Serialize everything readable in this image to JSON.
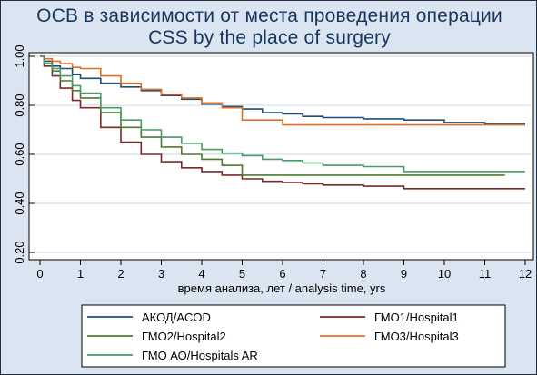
{
  "chart_data": {
    "type": "line",
    "title": "ОСВ в зависимости от места проведения операции",
    "subtitle": "CSS by the place of surgery",
    "xlabel": "время анализа, лет / analysis time, yrs",
    "ylabel": "",
    "xlim": [
      0,
      12
    ],
    "ylim": [
      0.2,
      1.0
    ],
    "x_ticks": [
      "0",
      "1",
      "2",
      "3",
      "4",
      "5",
      "6",
      "7",
      "8",
      "9",
      "10",
      "11",
      "12"
    ],
    "y_ticks": [
      "0.20",
      "0.40",
      "0.60",
      "0.80",
      "1.00"
    ],
    "grid": true,
    "legend_position": "bottom",
    "series": [
      {
        "name": "АКОД/ACOD",
        "color": "#1f4e79",
        "points": [
          [
            0,
            1.0
          ],
          [
            0.1,
            0.98
          ],
          [
            0.3,
            0.96
          ],
          [
            0.5,
            0.95
          ],
          [
            0.8,
            0.925
          ],
          [
            1.0,
            0.91
          ],
          [
            1.5,
            0.89
          ],
          [
            2.0,
            0.875
          ],
          [
            2.5,
            0.86
          ],
          [
            3.0,
            0.84
          ],
          [
            3.5,
            0.825
          ],
          [
            4.0,
            0.805
          ],
          [
            4.5,
            0.795
          ],
          [
            5.0,
            0.785
          ],
          [
            5.5,
            0.77
          ],
          [
            6.0,
            0.765
          ],
          [
            6.5,
            0.755
          ],
          [
            7.0,
            0.75
          ],
          [
            8.0,
            0.745
          ],
          [
            9.0,
            0.74
          ],
          [
            10.0,
            0.73
          ],
          [
            11.0,
            0.725
          ],
          [
            12.0,
            0.725
          ]
        ]
      },
      {
        "name": "ГМО1/Hospital1",
        "color": "#7b2929",
        "points": [
          [
            0,
            1.0
          ],
          [
            0.1,
            0.96
          ],
          [
            0.3,
            0.92
          ],
          [
            0.5,
            0.87
          ],
          [
            0.8,
            0.82
          ],
          [
            1.0,
            0.79
          ],
          [
            1.5,
            0.71
          ],
          [
            2.0,
            0.65
          ],
          [
            2.5,
            0.6
          ],
          [
            3.0,
            0.57
          ],
          [
            3.5,
            0.545
          ],
          [
            4.0,
            0.53
          ],
          [
            4.5,
            0.515
          ],
          [
            5.0,
            0.5
          ],
          [
            5.5,
            0.49
          ],
          [
            6.0,
            0.485
          ],
          [
            6.5,
            0.48
          ],
          [
            7.0,
            0.475
          ],
          [
            8.0,
            0.47
          ],
          [
            9.0,
            0.46
          ],
          [
            10.0,
            0.46
          ],
          [
            11.0,
            0.46
          ],
          [
            12.0,
            0.46
          ]
        ]
      },
      {
        "name": "ГМО2/Hospital2",
        "color": "#4f7a2e",
        "points": [
          [
            0,
            1.0
          ],
          [
            0.1,
            0.97
          ],
          [
            0.3,
            0.94
          ],
          [
            0.5,
            0.9
          ],
          [
            0.8,
            0.86
          ],
          [
            1.0,
            0.83
          ],
          [
            1.5,
            0.77
          ],
          [
            2.0,
            0.71
          ],
          [
            2.5,
            0.67
          ],
          [
            3.0,
            0.63
          ],
          [
            3.5,
            0.6
          ],
          [
            4.0,
            0.58
          ],
          [
            4.5,
            0.555
          ],
          [
            5.0,
            0.515
          ],
          [
            6.0,
            0.515
          ],
          [
            7.0,
            0.515
          ],
          [
            8.0,
            0.515
          ],
          [
            9.0,
            0.515
          ],
          [
            10.0,
            0.515
          ],
          [
            11.0,
            0.515
          ],
          [
            11.5,
            0.515
          ]
        ]
      },
      {
        "name": "ГМО3/Hospital3",
        "color": "#e07028",
        "points": [
          [
            0,
            1.0
          ],
          [
            0.1,
            0.99
          ],
          [
            0.3,
            0.98
          ],
          [
            0.5,
            0.97
          ],
          [
            0.8,
            0.955
          ],
          [
            1.0,
            0.95
          ],
          [
            1.5,
            0.92
          ],
          [
            2.0,
            0.89
          ],
          [
            2.5,
            0.865
          ],
          [
            3.0,
            0.845
          ],
          [
            3.5,
            0.83
          ],
          [
            4.0,
            0.81
          ],
          [
            4.5,
            0.79
          ],
          [
            5.0,
            0.74
          ],
          [
            5.5,
            0.74
          ],
          [
            6.0,
            0.72
          ],
          [
            7.0,
            0.72
          ],
          [
            8.0,
            0.72
          ],
          [
            9.0,
            0.72
          ],
          [
            10.0,
            0.72
          ],
          [
            11.0,
            0.72
          ],
          [
            12.0,
            0.72
          ]
        ]
      },
      {
        "name": "ГМО АО/Hospitals AR",
        "color": "#4a9a6a",
        "points": [
          [
            0,
            1.0
          ],
          [
            0.1,
            0.97
          ],
          [
            0.3,
            0.95
          ],
          [
            0.5,
            0.92
          ],
          [
            0.8,
            0.88
          ],
          [
            1.0,
            0.85
          ],
          [
            1.5,
            0.79
          ],
          [
            2.0,
            0.74
          ],
          [
            2.5,
            0.7
          ],
          [
            3.0,
            0.67
          ],
          [
            3.5,
            0.645
          ],
          [
            4.0,
            0.62
          ],
          [
            4.5,
            0.605
          ],
          [
            5.0,
            0.595
          ],
          [
            5.5,
            0.58
          ],
          [
            6.0,
            0.575
          ],
          [
            6.5,
            0.565
          ],
          [
            7.0,
            0.555
          ],
          [
            8.0,
            0.55
          ],
          [
            9.0,
            0.53
          ],
          [
            10.0,
            0.53
          ],
          [
            11.0,
            0.53
          ],
          [
            12.0,
            0.53
          ]
        ]
      }
    ]
  }
}
